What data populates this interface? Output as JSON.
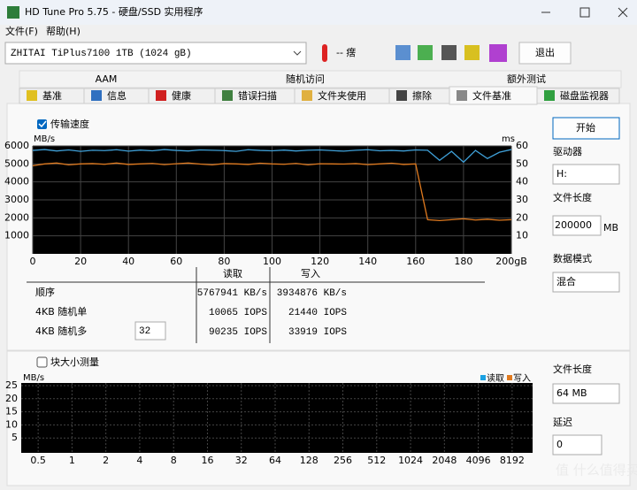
{
  "window": {
    "title": "HD Tune Pro 5.75 - 硬盘/SSD 实用程序"
  },
  "menu": [
    "文件(F)",
    "帮助(H)"
  ],
  "toolbar": {
    "drive": "ZHITAI TiPlus7100 1TB (1024 gB)",
    "temperature": "-- 瘔",
    "exit": "退出"
  },
  "tabs_top": [
    "AAM",
    "随机访问",
    "额外测试"
  ],
  "tabs": [
    "基准",
    "信息",
    "健康",
    "错误扫描",
    "文件夹使用",
    "擦除",
    "文件基准",
    "磁盘监视器"
  ],
  "transfer": {
    "checkbox": "传输速度",
    "y_unit": "MB/s",
    "y2_unit": "ms",
    "xlim": [
      0,
      200
    ],
    "xticks": [
      0,
      20,
      40,
      60,
      80,
      100,
      120,
      140,
      160,
      180,
      {
        "value": 200,
        "label": "200gB"
      }
    ],
    "ylim": [
      0,
      6000
    ],
    "yticks": [
      1000,
      2000,
      3000,
      4000,
      5000,
      6000
    ],
    "y2lim": [
      0,
      60
    ],
    "y2ticks": [
      10,
      20,
      30,
      40,
      50,
      60
    ],
    "x": [
      0,
      5,
      10,
      15,
      20,
      25,
      30,
      35,
      40,
      45,
      50,
      55,
      60,
      65,
      70,
      75,
      80,
      85,
      90,
      95,
      100,
      105,
      110,
      115,
      120,
      125,
      130,
      135,
      140,
      145,
      150,
      155,
      160,
      165,
      170,
      175,
      180,
      185,
      190,
      195,
      200
    ],
    "series": [
      {
        "name": "读取",
        "color": "#3fa0d8",
        "values": [
          5750,
          5800,
          5720,
          5780,
          5700,
          5760,
          5740,
          5790,
          5710,
          5770,
          5730,
          5800,
          5750,
          5720,
          5780,
          5760,
          5740,
          5700,
          5790,
          5750,
          5730,
          5770,
          5720,
          5760,
          5780,
          5740,
          5710,
          5760,
          5790,
          5730,
          5750,
          5720,
          5780,
          5760,
          5200,
          5700,
          5100,
          5750,
          5300,
          5650,
          5800
        ]
      },
      {
        "name": "写入",
        "color": "#e07a1f",
        "values": [
          4900,
          5000,
          5050,
          4950,
          5000,
          5020,
          4980,
          5050,
          4970,
          5000,
          5030,
          4960,
          5010,
          5050,
          4990,
          4950,
          5020,
          5000,
          4970,
          5040,
          5000,
          4980,
          5030,
          4950,
          5010,
          5000,
          4990,
          5020,
          4960,
          5000,
          5040,
          4970,
          5000,
          1900,
          1850,
          1900,
          1950,
          1880,
          1920,
          1870,
          1900
        ]
      }
    ]
  },
  "results": {
    "headers": [
      "读取",
      "写入"
    ],
    "rows": [
      {
        "label": "顺序",
        "read": "5767941 KB/s",
        "write": "3934876 KB/s"
      },
      {
        "label": "4KB 随机单",
        "read": "10065 IOPS",
        "write": "21440 IOPS"
      },
      {
        "label": "4KB 随机多",
        "read": "90235 IOPS",
        "write": "33919 IOPS"
      }
    ],
    "queue_depth": "32"
  },
  "side": {
    "start": "开始",
    "drive_label": "驱动器",
    "drive": "H:",
    "file_length_label": "文件长度",
    "file_length": "200000",
    "unit": "MB",
    "mode_label": "数据模式",
    "mode": "混合"
  },
  "block": {
    "checkbox": "块大小测量",
    "y_unit": "MB/s",
    "legend": [
      "读取",
      "写入"
    ],
    "legend_colors": [
      "#1ba1e2",
      "#e07a1f"
    ],
    "ylim": [
      0,
      25
    ],
    "yticks": [
      5,
      10,
      15,
      20,
      25
    ],
    "categories": [
      "0.5",
      "1",
      "2",
      "4",
      "8",
      "16",
      "32",
      "64",
      "128",
      "256",
      "512",
      "1024",
      "2048",
      "4096",
      "8192"
    ]
  },
  "side2": {
    "file_length_label": "文件长度",
    "file_length": "64 MB",
    "delay_label": "延迟",
    "delay": "0"
  },
  "watermark": "值 什么值得买"
}
